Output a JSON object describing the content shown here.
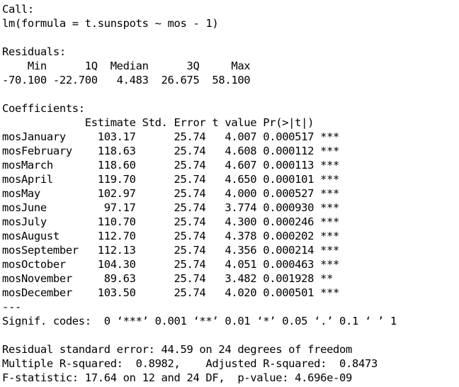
{
  "console": {
    "lines": [
      "Call:",
      "lm(formula = t.sunspots ~ mos - 1)",
      "",
      "Residuals:",
      "    Min      1Q  Median      3Q     Max ",
      "-70.100 -22.700   4.483  26.675  58.100 ",
      "",
      "Coefficients:",
      "             Estimate Std. Error t value Pr(>|t|)    ",
      "mosJanuary     103.17      25.74   4.007 0.000517 ***",
      "mosFebruary    118.63      25.74   4.608 0.000112 ***",
      "mosMarch       118.60      25.74   4.607 0.000113 ***",
      "mosApril       119.70      25.74   4.650 0.000101 ***",
      "mosMay         102.97      25.74   4.000 0.000527 ***",
      "mosJune         97.17      25.74   3.774 0.000930 ***",
      "mosJuly        110.70      25.74   4.300 0.000246 ***",
      "mosAugust      112.70      25.74   4.378 0.000202 ***",
      "mosSeptember   112.13      25.74   4.356 0.000214 ***",
      "mosOctober     104.30      25.74   4.051 0.000463 ***",
      "mosNovember     89.63      25.74   3.482 0.001928 ** ",
      "mosDecember    103.50      25.74   4.020 0.000501 ***",
      "---",
      "Signif. codes:  0 ‘***’ 0.001 ‘**’ 0.01 ‘*’ 0.05 ‘.’ 0.1 ‘ ’ 1",
      "",
      "Residual standard error: 44.59 on 24 degrees of freedom",
      "Multiple R-squared:  0.8982,\tAdjusted R-squared:  0.8473 ",
      "F-statistic: 17.64 on 12 and 24 DF,  p-value: 4.696e-09"
    ]
  }
}
